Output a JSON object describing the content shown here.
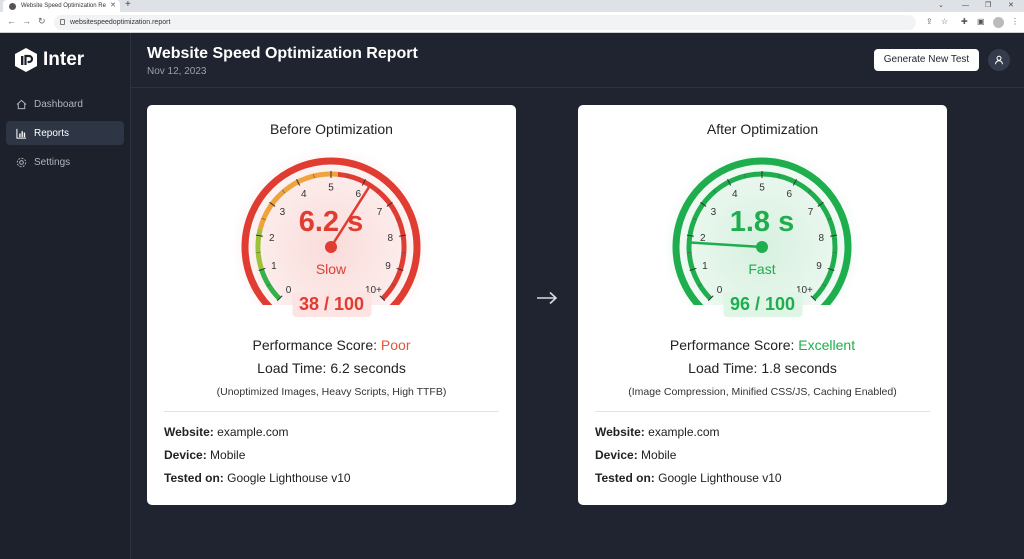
{
  "browser": {
    "tab_title": "Website Speed Optimization Re",
    "url": "websitespeedoptimization.report"
  },
  "app": {
    "name": "Inter"
  },
  "sidebar": {
    "items": [
      {
        "label": "Dashboard",
        "icon": "home-icon",
        "active": false
      },
      {
        "label": "Reports",
        "icon": "bar-chart-icon",
        "active": true
      },
      {
        "label": "Settings",
        "icon": "gear-icon",
        "active": false
      }
    ]
  },
  "header": {
    "title": "Website Speed Optimization Report",
    "date": "Nov 12, 2023",
    "generate_button": "Generate New Test"
  },
  "before": {
    "title": "Before Optimization",
    "gauge_value": "6.2 s",
    "gauge_label": "Slow",
    "gauge_reading": 6.2,
    "score": "38 / 100",
    "perf_label": "Performance Score:",
    "perf_value": "Poor",
    "load_time": "Load Time: 6.2 seconds",
    "details": "(Unoptimized Images, Heavy Scripts, High TTFB)",
    "website_label": "Website:",
    "website": "example.com",
    "device_label": "Device:",
    "device": "Mobile",
    "tested_label": "Tested on:",
    "tested": "Google Lighthouse v10",
    "accent": "#e03c31"
  },
  "after": {
    "title": "After Optimization",
    "gauge_value": "1.8 s",
    "gauge_label": "Fast",
    "gauge_reading": 1.8,
    "score": "96 / 100",
    "perf_label": "Performance Score:",
    "perf_value": "Excellent",
    "load_time": "Load Time: 1.8 seconds",
    "details": "(Image Compression, Minified CSS/JS, Caching Enabled)",
    "website_label": "Website:",
    "website": "example.com",
    "device_label": "Device:",
    "device": "Mobile",
    "tested_label": "Tested on:",
    "tested": "Google Lighthouse v10",
    "accent": "#1fae4e"
  },
  "gauge_ticks": [
    "0",
    "1",
    "2",
    "3",
    "4",
    "5",
    "6",
    "7",
    "8",
    "9",
    "10+"
  ]
}
